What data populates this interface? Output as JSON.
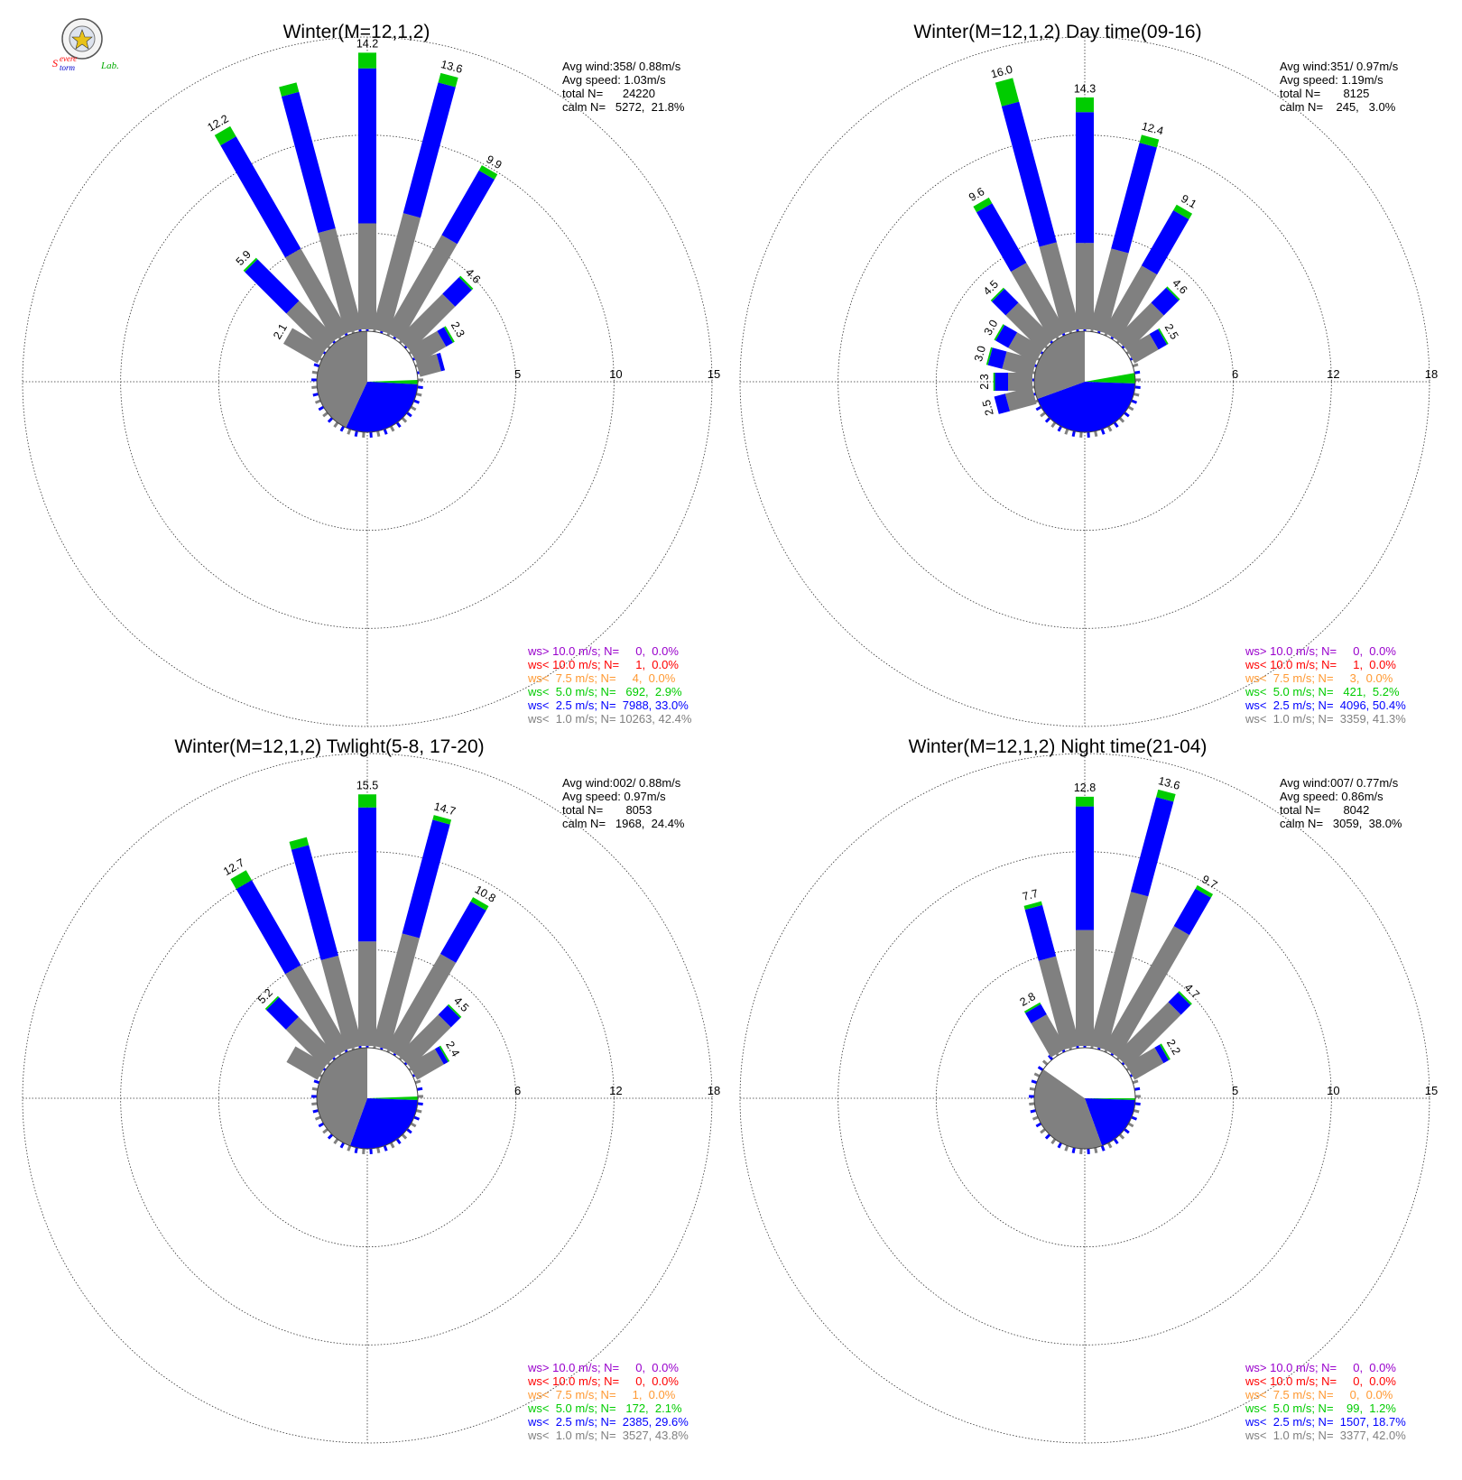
{
  "logo": {
    "line1_a": "S",
    "line1_b": "evere",
    "line2_a": "torm",
    "line2_b": "Lab."
  },
  "colors": {
    "ws_gt10": "#9900cc",
    "ws_lt10": "#ff0000",
    "ws_lt75": "#ff9933",
    "ws_lt5": "#00cc00",
    "ws_lt25": "#0000ff",
    "ws_lt1": "#808080"
  },
  "chart_data": [
    {
      "type": "wind-rose",
      "title": "Winter(M=12,1,2)",
      "stats": [
        "Avg wind:358/ 0.88m/s",
        "Avg speed: 1.03m/s",
        "total N=      24220",
        "calm N=   5272,  21.8%"
      ],
      "rings": [
        5,
        10,
        15
      ],
      "ring_labels": [
        "5",
        "10",
        "15"
      ],
      "bars": [
        {
          "dir": -60,
          "gray": 2.1,
          "blue": 0.0,
          "green": 0.0,
          "label": "2.1"
        },
        {
          "dir": -45,
          "gray": 2.8,
          "blue": 3.0,
          "green": 0.1,
          "label": "5.9"
        },
        {
          "dir": -30,
          "gray": 5.0,
          "blue": 6.6,
          "green": 0.6,
          "label": "12.2"
        },
        {
          "dir": -15,
          "gray": 5.4,
          "blue": 7.2,
          "green": 0.5,
          "label": ""
        },
        {
          "dir": 0,
          "gray": 5.5,
          "blue": 7.9,
          "green": 0.8,
          "label": "14.2"
        },
        {
          "dir": 15,
          "gray": 6.2,
          "blue": 6.9,
          "green": 0.5,
          "label": "13.6"
        },
        {
          "dir": 30,
          "gray": 5.8,
          "blue": 3.8,
          "green": 0.3,
          "label": "9.9"
        },
        {
          "dir": 45,
          "gray": 3.3,
          "blue": 1.2,
          "green": 0.1,
          "label": "4.6"
        },
        {
          "dir": 60,
          "gray": 1.8,
          "blue": 0.4,
          "green": 0.1,
          "label": "2.3"
        },
        {
          "dir": 75,
          "gray": 1.2,
          "blue": 0.2,
          "green": 0.0,
          "label": ""
        }
      ],
      "pie": [
        {
          "from": 0,
          "to": 88,
          "color": "white"
        },
        {
          "from": 88,
          "to": 93,
          "color": "green"
        },
        {
          "from": 93,
          "to": 205,
          "color": "blue"
        },
        {
          "from": 205,
          "to": 360,
          "color": "gray"
        }
      ],
      "legend": [
        {
          "text": "ws> 10.0 m/s; N=     0,  0.0%",
          "color": "ws_gt10"
        },
        {
          "text": "ws< 10.0 m/s; N=     1,  0.0%",
          "color": "ws_lt10"
        },
        {
          "text": "ws<  7.5 m/s; N=     4,  0.0%",
          "color": "ws_lt75"
        },
        {
          "text": "ws<  5.0 m/s; N=   692,  2.9%",
          "color": "ws_lt5"
        },
        {
          "text": "ws<  2.5 m/s; N=  7988, 33.0%",
          "color": "ws_lt25"
        },
        {
          "text": "ws<  1.0 m/s; N= 10263, 42.4%",
          "color": "ws_lt1"
        }
      ]
    },
    {
      "type": "wind-rose",
      "title": "Winter(M=12,1,2) Day time(09-16)",
      "stats": [
        "Avg wind:351/ 0.97m/s",
        "Avg speed: 1.19m/s",
        "total N=       8125",
        "calm N=    245,   3.0%"
      ],
      "rings": [
        6,
        12,
        18
      ],
      "ring_labels": [
        "6",
        "12",
        "18"
      ],
      "bars": [
        {
          "dir": -75,
          "gray": 2.0,
          "blue": 0.9,
          "green": 0.1,
          "label": "3.0"
        },
        {
          "dir": -60,
          "gray": 2.0,
          "blue": 0.9,
          "green": 0.1,
          "label": "3.0"
        },
        {
          "dir": -45,
          "gray": 3.2,
          "blue": 1.2,
          "green": 0.1,
          "label": "4.5"
        },
        {
          "dir": -30,
          "gray": 5.0,
          "blue": 4.2,
          "green": 0.4,
          "label": "9.6"
        },
        {
          "dir": -15,
          "gray": 5.6,
          "blue": 8.9,
          "green": 1.5,
          "label": "16.0"
        },
        {
          "dir": 0,
          "gray": 5.4,
          "blue": 8.0,
          "green": 0.9,
          "label": "14.3"
        },
        {
          "dir": 15,
          "gray": 5.2,
          "blue": 6.7,
          "green": 0.5,
          "label": "12.4"
        },
        {
          "dir": 30,
          "gray": 4.8,
          "blue": 3.9,
          "green": 0.4,
          "label": "9.1"
        },
        {
          "dir": 45,
          "gray": 3.2,
          "blue": 1.3,
          "green": 0.1,
          "label": "4.6"
        },
        {
          "dir": 60,
          "gray": 1.8,
          "blue": 0.6,
          "green": 0.1,
          "label": "2.5"
        },
        {
          "dir": -90,
          "gray": 1.6,
          "blue": 0.8,
          "green": 0.1,
          "label": "2.3"
        },
        {
          "dir": -105,
          "gray": 1.8,
          "blue": 0.7,
          "green": 0.0,
          "label": "2.5"
        }
      ],
      "pie": [
        {
          "from": 0,
          "to": 80,
          "color": "white"
        },
        {
          "from": 80,
          "to": 92,
          "color": "green"
        },
        {
          "from": 92,
          "to": 250,
          "color": "blue"
        },
        {
          "from": 250,
          "to": 360,
          "color": "gray"
        }
      ],
      "legend": [
        {
          "text": "ws> 10.0 m/s; N=     0,  0.0%",
          "color": "ws_gt10"
        },
        {
          "text": "ws< 10.0 m/s; N=     1,  0.0%",
          "color": "ws_lt10"
        },
        {
          "text": "ws<  7.5 m/s; N=     3,  0.0%",
          "color": "ws_lt75"
        },
        {
          "text": "ws<  5.0 m/s; N=   421,  5.2%",
          "color": "ws_lt5"
        },
        {
          "text": "ws<  2.5 m/s; N=  4096, 50.4%",
          "color": "ws_lt25"
        },
        {
          "text": "ws<  1.0 m/s; N=  3359, 41.3%",
          "color": "ws_lt1"
        }
      ]
    },
    {
      "type": "wind-rose",
      "title": "Winter(M=12,1,2) Twlight(5-8, 17-20)",
      "stats": [
        "Avg wind:002/ 0.88m/s",
        "Avg speed: 0.97m/s",
        "total N=       8053",
        "calm N=   1968,  24.4%"
      ],
      "rings": [
        6,
        12,
        18
      ],
      "ring_labels": [
        "6",
        "12",
        "18"
      ],
      "bars": [
        {
          "dir": -60,
          "gray": 2.3,
          "blue": 0.0,
          "green": 0.0,
          "label": ""
        },
        {
          "dir": -45,
          "gray": 3.4,
          "blue": 1.7,
          "green": 0.1,
          "label": "5.2"
        },
        {
          "dir": -30,
          "gray": 6.0,
          "blue": 6.0,
          "green": 0.7,
          "label": "12.7"
        },
        {
          "dir": -15,
          "gray": 5.8,
          "blue": 7.0,
          "green": 0.5,
          "label": ""
        },
        {
          "dir": 0,
          "gray": 6.5,
          "blue": 8.2,
          "green": 0.8,
          "label": "15.5"
        },
        {
          "dir": 15,
          "gray": 7.2,
          "blue": 7.2,
          "green": 0.3,
          "label": "14.7"
        },
        {
          "dir": 30,
          "gray": 6.8,
          "blue": 3.7,
          "green": 0.3,
          "label": "10.8"
        },
        {
          "dir": 45,
          "gray": 3.6,
          "blue": 0.8,
          "green": 0.1,
          "label": "4.5"
        },
        {
          "dir": 60,
          "gray": 2.0,
          "blue": 0.3,
          "green": 0.1,
          "label": "2.4"
        }
      ],
      "pie": [
        {
          "from": 0,
          "to": 88,
          "color": "white"
        },
        {
          "from": 88,
          "to": 92,
          "color": "green"
        },
        {
          "from": 92,
          "to": 200,
          "color": "blue"
        },
        {
          "from": 200,
          "to": 360,
          "color": "gray"
        }
      ],
      "legend": [
        {
          "text": "ws> 10.0 m/s; N=     0,  0.0%",
          "color": "ws_gt10"
        },
        {
          "text": "ws< 10.0 m/s; N=     0,  0.0%",
          "color": "ws_lt10"
        },
        {
          "text": "ws<  7.5 m/s; N=     1,  0.0%",
          "color": "ws_lt75"
        },
        {
          "text": "ws<  5.0 m/s; N=   172,  2.1%",
          "color": "ws_lt5"
        },
        {
          "text": "ws<  2.5 m/s; N=  2385, 29.6%",
          "color": "ws_lt25"
        },
        {
          "text": "ws<  1.0 m/s; N=  3527, 43.8%",
          "color": "ws_lt1"
        }
      ]
    },
    {
      "type": "wind-rose",
      "title": "Winter(M=12,1,2) Night time(21-04)",
      "stats": [
        "Avg wind:007/ 0.77m/s",
        "Avg speed: 0.86m/s",
        "total N=       8042",
        "calm N=   3059,  38.0%"
      ],
      "rings": [
        5,
        10,
        15
      ],
      "ring_labels": [
        "5",
        "10",
        "15"
      ],
      "bars": [
        {
          "dir": -30,
          "gray": 2.1,
          "blue": 0.6,
          "green": 0.1,
          "label": "2.8"
        },
        {
          "dir": -15,
          "gray": 4.8,
          "blue": 2.7,
          "green": 0.2,
          "label": "7.7"
        },
        {
          "dir": 0,
          "gray": 6.0,
          "blue": 6.3,
          "green": 0.5,
          "label": "12.8"
        },
        {
          "dir": 15,
          "gray": 8.2,
          "blue": 5.0,
          "green": 0.4,
          "label": "13.6"
        },
        {
          "dir": 30,
          "gray": 7.3,
          "blue": 2.2,
          "green": 0.2,
          "label": "9.7"
        },
        {
          "dir": 45,
          "gray": 3.9,
          "blue": 0.7,
          "green": 0.1,
          "label": "4.7"
        },
        {
          "dir": 60,
          "gray": 1.8,
          "blue": 0.3,
          "green": 0.1,
          "label": "2.2"
        }
      ],
      "pie": [
        {
          "from": 0,
          "to": 90,
          "color": "white"
        },
        {
          "from": 90,
          "to": 92,
          "color": "green"
        },
        {
          "from": 92,
          "to": 160,
          "color": "blue"
        },
        {
          "from": 160,
          "to": 305,
          "color": "gray"
        },
        {
          "from": 305,
          "to": 360,
          "color": "white"
        }
      ],
      "legend": [
        {
          "text": "ws> 10.0 m/s; N=     0,  0.0%",
          "color": "ws_gt10"
        },
        {
          "text": "ws< 10.0 m/s; N=     0,  0.0%",
          "color": "ws_lt10"
        },
        {
          "text": "ws<  7.5 m/s; N=     0,  0.0%",
          "color": "ws_lt75"
        },
        {
          "text": "ws<  5.0 m/s; N=    99,  1.2%",
          "color": "ws_lt5"
        },
        {
          "text": "ws<  2.5 m/s; N=  1507, 18.7%",
          "color": "ws_lt25"
        },
        {
          "text": "ws<  1.0 m/s; N=  3377, 42.0%",
          "color": "ws_lt1"
        }
      ]
    }
  ]
}
